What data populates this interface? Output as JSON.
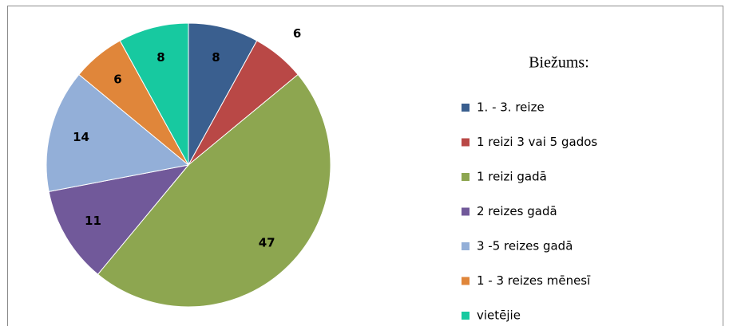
{
  "chart_data": {
    "type": "pie",
    "legend_title": "Biežums:",
    "categories": [
      "1. - 3. reize",
      "1 reizi 3 vai 5 gados",
      "1 reizi gadā",
      "2 reizes gadā",
      "3 -5 reizes gadā",
      "1 - 3 reizes mēnesī",
      "vietējie"
    ],
    "values": [
      8,
      6,
      47,
      11,
      14,
      6,
      8
    ],
    "colors": [
      "#3A5F8F",
      "#B94846",
      "#8DA650",
      "#71599A",
      "#93AFD8",
      "#E0863A",
      "#17C9A0"
    ],
    "legend": "right"
  }
}
